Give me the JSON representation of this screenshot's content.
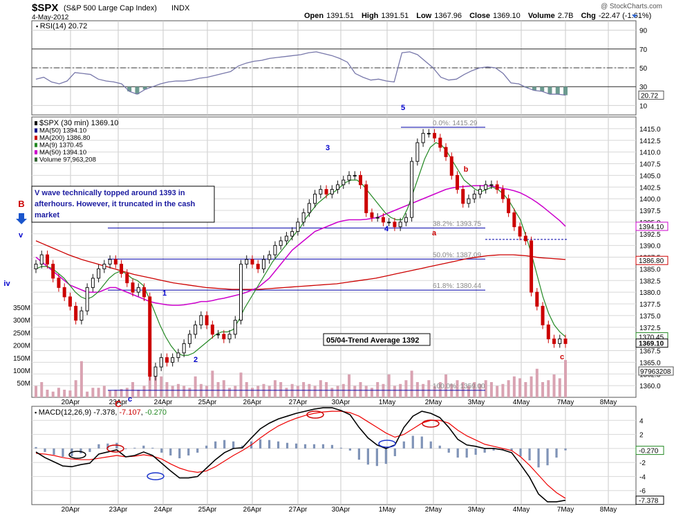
{
  "header": {
    "symbol": "$SPX",
    "name": "(S&P 500 Large Cap Index)",
    "exchange": "INDX",
    "date": "4-May-2012",
    "copyright": "@ StockCharts.com",
    "open_label": "Open",
    "open": "1391.51",
    "high_label": "High",
    "high": "1391.51",
    "low_label": "Low",
    "low": "1367.96",
    "close_label": "Close",
    "close": "1369.10",
    "volume_label": "Volume",
    "volume": "2.7B",
    "chg_label": "Chg",
    "chg": "-22.47 (-1.61%)"
  },
  "colors": {
    "candle_up": "#111111",
    "candle_down": "#cc0000",
    "candle_up_fill": "#ffffff",
    "ma50": "#cc00cc",
    "ma200": "#cc0000",
    "ma9": "#228822",
    "volume": "#d9a3b2",
    "rsi": "#7777aa",
    "rsi_fill": "#6b9a8f",
    "macd": "#000000",
    "macd_signal": "#ee0000",
    "macd_hist": "#7f93b7",
    "fib": "#0000aa",
    "wave_blue": "#0000cc",
    "wave_red": "#cc0000"
  },
  "chart_data": [
    {
      "type": "line",
      "panel": "rsi",
      "legend": "RSI(14) 20.72",
      "ylim": [
        0,
        100
      ],
      "levels": [
        70,
        50,
        30
      ],
      "yticks": [
        "90",
        "70",
        "50",
        "30",
        "10"
      ],
      "last_value": "20.72",
      "values": [
        38,
        40,
        35,
        33,
        36,
        45,
        44,
        43,
        38,
        36,
        35,
        33,
        25,
        22,
        27,
        30,
        33,
        35,
        36,
        36,
        37,
        39,
        40,
        42,
        44,
        46,
        52,
        55,
        57,
        58,
        60,
        61,
        62,
        63,
        64,
        66,
        67,
        65,
        63,
        60,
        56,
        44,
        40,
        37,
        38,
        36,
        35,
        66,
        67,
        64,
        57,
        50,
        40,
        37,
        38,
        43,
        47,
        50,
        51,
        50,
        44,
        34,
        33,
        29,
        26,
        25,
        22,
        22,
        21
      ]
    },
    {
      "type": "line",
      "panel": "price",
      "legend": [
        {
          "label": "$SPX (30 min) 1369.10",
          "color": "#111111"
        },
        {
          "label": "MA(50) 1394.10",
          "color": "#000088"
        },
        {
          "label": "MA(200) 1386.80",
          "color": "#cc0000"
        },
        {
          "label": "MA(9) 1370.45",
          "color": "#228822"
        },
        {
          "label": "MA(50) 1394.10",
          "color": "#cc00cc"
        },
        {
          "label": "Volume 97,963,208",
          "color": "#336633"
        }
      ],
      "ylim": [
        1357.5,
        1417.5
      ],
      "yticks": [
        "1415.0",
        "1412.5",
        "1410.0",
        "1407.5",
        "1405.0",
        "1402.5",
        "1400.0",
        "1397.5",
        "1395.0",
        "1392.5",
        "1390.0",
        "1387.5",
        "1385.0",
        "1382.5",
        "1380.0",
        "1377.5",
        "1375.0",
        "1372.5",
        "1370.0",
        "1367.5",
        "1365.0",
        "1362.5",
        "1360.0"
      ],
      "xticks": [
        "20Apr",
        "23Apr",
        "24Apr",
        "25Apr",
        "26Apr",
        "27Apr",
        "30Apr",
        "1May",
        "2May",
        "3May",
        "4May",
        "7May",
        "8May"
      ],
      "price_tags": [
        {
          "value": 1394.1,
          "label": "1394.10"
        },
        {
          "value": 1386.8,
          "label": "1386.80"
        },
        {
          "value": 1370.45,
          "label": "1370.45"
        },
        {
          "value": 1369.1,
          "label": "1369.10"
        }
      ],
      "volume_axis": [
        "350M",
        "300M",
        "250M",
        "200M",
        "150M",
        "100M",
        "50M"
      ],
      "volume_tag": "97963208",
      "closes": [
        1386,
        1388,
        1386,
        1383,
        1381,
        1379,
        1377,
        1374,
        1376,
        1381,
        1383,
        1385,
        1386,
        1387,
        1386,
        1384,
        1382,
        1380,
        1381,
        1379,
        1362,
        1364,
        1366,
        1365,
        1366,
        1367,
        1369,
        1371,
        1373,
        1375,
        1373,
        1371,
        1371,
        1370,
        1371,
        1374,
        1386,
        1387,
        1386,
        1385,
        1387,
        1388,
        1390,
        1391,
        1392,
        1393,
        1395,
        1397,
        1399,
        1401,
        1402,
        1401,
        1402,
        1403,
        1404,
        1405,
        1405,
        1403,
        1397,
        1396,
        1396,
        1395,
        1395,
        1394,
        1395,
        1396,
        1408,
        1412,
        1414,
        1414,
        1413,
        1411,
        1409,
        1405,
        1402,
        1399,
        1400,
        1401,
        1402,
        1403,
        1403,
        1402,
        1400,
        1397,
        1394,
        1392,
        1391,
        1380,
        1377,
        1373,
        1370,
        1369,
        1370,
        1369
      ],
      "ma9": [
        1385,
        1385.5,
        1385.5,
        1385,
        1384,
        1383,
        1381.5,
        1380,
        1379,
        1378.5,
        1379,
        1380,
        1381.5,
        1383,
        1384,
        1384.5,
        1384,
        1383,
        1382.5,
        1381.5,
        1379,
        1376,
        1373,
        1370.5,
        1368.5,
        1367,
        1366.5,
        1366.5,
        1367,
        1368,
        1369,
        1370,
        1371,
        1371.5,
        1371.5,
        1372,
        1374,
        1376.5,
        1378.5,
        1380.5,
        1382.5,
        1384.5,
        1386.5,
        1388,
        1389.5,
        1391,
        1392.5,
        1394,
        1396,
        1397.5,
        1399,
        1400,
        1401,
        1401.5,
        1402.5,
        1403.5,
        1404,
        1404,
        1403,
        1401.5,
        1400,
        1398.5,
        1397,
        1396,
        1395.5,
        1395.5,
        1398,
        1401.5,
        1405,
        1408.5,
        1411,
        1412,
        1411.5,
        1410,
        1408,
        1406,
        1404,
        1403,
        1402,
        1401.5,
        1402,
        1402.5,
        1402,
        1401,
        1399.5,
        1397.5,
        1395.5,
        1392,
        1388,
        1383.5,
        1379,
        1375.5,
        1373,
        1371.5,
        1370.45
      ],
      "ma50_magenta": [
        1387.5,
        1386.5,
        1385.5,
        1384.5,
        1383.5,
        1382.5,
        1381.5,
        1381,
        1380.5,
        1380,
        1380,
        1380,
        1380.5,
        1381,
        1381,
        1380.5,
        1380,
        1379.5,
        1379,
        1378.5,
        1378,
        1377.7,
        1377.5,
        1377.3,
        1377.2,
        1377.2,
        1377.3,
        1377.5,
        1377.7,
        1378,
        1378,
        1378.2,
        1378.5,
        1378.7,
        1379,
        1379.3,
        1379.6,
        1380,
        1380.5,
        1381,
        1382,
        1383,
        1384.5,
        1386,
        1387.5,
        1389,
        1390,
        1391,
        1392,
        1393,
        1393.5,
        1394,
        1394.5,
        1395,
        1395.3,
        1395.5,
        1395.5,
        1395.5,
        1395.6,
        1395.8,
        1396,
        1396.5,
        1397,
        1397.5,
        1398,
        1398.5,
        1399,
        1399.5,
        1400,
        1400.5,
        1401,
        1401.5,
        1402,
        1402.3,
        1402.5,
        1402.6,
        1402.7,
        1402.8,
        1402.8,
        1402.8,
        1402.7,
        1402.5,
        1402.2,
        1402,
        1401.7,
        1401.3,
        1400.7,
        1400,
        1399.2,
        1398.3,
        1397.3,
        1396.3,
        1395.3,
        1394.1
      ],
      "ma200": [
        1391,
        1390.4,
        1389.8,
        1389.2,
        1388.6,
        1388,
        1387.5,
        1387,
        1386.6,
        1386.2,
        1385.8,
        1385.4,
        1385,
        1384.6,
        1384.2,
        1383.8,
        1383.5,
        1383.2,
        1382.9,
        1382.6,
        1382.3,
        1382,
        1381.8,
        1381.6,
        1381.4,
        1381.2,
        1381,
        1380.9,
        1380.8,
        1380.7,
        1380.6,
        1380.6,
        1380.6,
        1380.6,
        1380.6,
        1380.7,
        1380.8,
        1380.9,
        1381,
        1381.1,
        1381.2,
        1381.3,
        1381.4,
        1381.5,
        1381.6,
        1381.7,
        1381.8,
        1382,
        1382.2,
        1382.4,
        1382.6,
        1382.8,
        1383,
        1383.3,
        1383.6,
        1383.9,
        1384.2,
        1384.5,
        1384.8,
        1385.1,
        1385.4,
        1385.7,
        1386,
        1386.3,
        1386.6,
        1386.9,
        1387.2,
        1387.4,
        1387.6,
        1387.8,
        1387.9,
        1388,
        1388,
        1388,
        1387.9,
        1387.8,
        1387.6,
        1387.4,
        1387.3,
        1387.2,
        1387.1,
        1387
      ],
      "volume": [
        30,
        40,
        20,
        15,
        25,
        20,
        18,
        45,
        95,
        15,
        25,
        25,
        30,
        18,
        20,
        22,
        25,
        40,
        20,
        30,
        240,
        60,
        55,
        40,
        30,
        35,
        30,
        25,
        55,
        35,
        30,
        70,
        40,
        45,
        25,
        30,
        65,
        40,
        25,
        30,
        35,
        30,
        45,
        40,
        25,
        35,
        30,
        40,
        35,
        30,
        45,
        40,
        25,
        30,
        35,
        60,
        30,
        40,
        30,
        25,
        40,
        35,
        60,
        30,
        35,
        45,
        70,
        40,
        35,
        45,
        30,
        40,
        60,
        35,
        45,
        40,
        30,
        40,
        35,
        45,
        40,
        30,
        35,
        45,
        55,
        50,
        40,
        55,
        75,
        40,
        45,
        60,
        50,
        98
      ],
      "fib_levels": [
        {
          "label": "0.0%: 1415.29",
          "value": 1415.29
        },
        {
          "label": "38.2%: 1393.75",
          "value": 1393.75
        },
        {
          "label": "50.0%: 1387.09",
          "value": 1387.09
        },
        {
          "label": "61.8%: 1380.44",
          "value": 1380.44
        },
        {
          "label": "100.0%: 1359.00",
          "value": 1359.0
        }
      ],
      "wave_labels": [
        {
          "text": "B",
          "color": "red"
        },
        {
          "text": "v",
          "color": "blue"
        },
        {
          "text": "iv",
          "color": "blue"
        },
        {
          "text": "1",
          "color": "blue"
        },
        {
          "text": "2",
          "color": "blue"
        },
        {
          "text": "3",
          "color": "blue"
        },
        {
          "text": "4",
          "color": "blue"
        },
        {
          "text": "5",
          "color": "blue"
        },
        {
          "text": "a",
          "color": "red"
        },
        {
          "text": "b",
          "color": "red"
        },
        {
          "text": "c",
          "color": "red"
        },
        {
          "text": "C",
          "color": "red"
        },
        {
          "text": "c",
          "color": "blue"
        }
      ],
      "annotations": [
        "V wave technically topped around 1393 in afterhours. However, it truncated in the cash market",
        "05/04-Trend Average 1392"
      ]
    },
    {
      "type": "line",
      "panel": "macd",
      "legend": "MACD(12,26,9) -7.378, -7.107, -0.270",
      "legend_macd": "MACD(12,26,9)",
      "legend_values": [
        "-7.378",
        "-7.107",
        "-0.270"
      ],
      "ylim": [
        -8,
        6
      ],
      "yticks": [
        "4",
        "2",
        "0",
        "-2",
        "-4",
        "-6"
      ],
      "tags": [
        "-0.270",
        "-7.378"
      ],
      "macd": [
        -0.5,
        -1.3,
        -1.9,
        -2.5,
        -2.6,
        -2.3,
        -2.1,
        -0.8,
        -0.5,
        -0.2,
        -1.2,
        -1.0,
        -0.5,
        -1.0,
        -2.1,
        -3.2,
        -4.2,
        -4.2,
        -4.0,
        -2.8,
        -1.6,
        -0.6,
        0.0,
        0.1,
        1.5,
        2.8,
        3.6,
        4.2,
        4.6,
        5.0,
        5.3,
        5.6,
        5.8,
        5.8,
        5.4,
        4.8,
        3.0,
        1.5,
        0.5,
        0.0,
        0.5,
        3.0,
        4.6,
        5.3,
        5.0,
        4.4,
        3.0,
        1.3,
        0.5,
        0.3,
        0.0,
        0.0,
        -0.2,
        -0.6,
        -2.3,
        -4.1,
        -6.5,
        -7.6,
        -7.6,
        -7.378
      ],
      "signal": [
        -0.7,
        -0.8,
        -1.0,
        -1.3,
        -1.5,
        -1.6,
        -1.6,
        -1.4,
        -1.2,
        -1.0,
        -1.2,
        -1.1,
        -0.9,
        -1.1,
        -1.5,
        -2.2,
        -2.8,
        -3.2,
        -3.4,
        -3.2,
        -2.6,
        -1.8,
        -1.0,
        -0.3,
        0.5,
        1.5,
        2.4,
        3.2,
        3.8,
        4.3,
        4.7,
        5.0,
        5.2,
        5.3,
        5.3,
        5.1,
        4.6,
        3.8,
        3.0,
        2.2,
        1.6,
        2.0,
        2.8,
        3.6,
        4.0,
        4.0,
        3.6,
        2.6,
        1.8,
        1.2,
        0.6,
        0.3,
        0.0,
        -0.3,
        -1.2,
        -2.4,
        -3.8,
        -5.2,
        -6.3,
        -7.107
      ],
      "histogram": [
        0.2,
        -0.5,
        -0.9,
        -1.2,
        -1.1,
        -0.7,
        -0.5,
        0.6,
        0.7,
        0.8,
        0.0,
        0.1,
        0.4,
        0.1,
        -0.6,
        -1.0,
        -1.4,
        -1.0,
        -0.6,
        0.4,
        1.0,
        1.2,
        1.0,
        0.4,
        1.0,
        1.3,
        1.2,
        1.0,
        0.8,
        0.7,
        0.6,
        0.6,
        0.6,
        0.5,
        0.1,
        -0.3,
        -1.6,
        -2.3,
        -2.5,
        -2.2,
        -1.1,
        1.0,
        1.8,
        1.7,
        1.0,
        0.4,
        -0.6,
        -1.3,
        -1.3,
        -0.9,
        -0.6,
        -0.3,
        -0.2,
        -0.3,
        -1.1,
        -1.7,
        -2.7,
        -2.4,
        -1.3,
        -0.27
      ]
    }
  ]
}
